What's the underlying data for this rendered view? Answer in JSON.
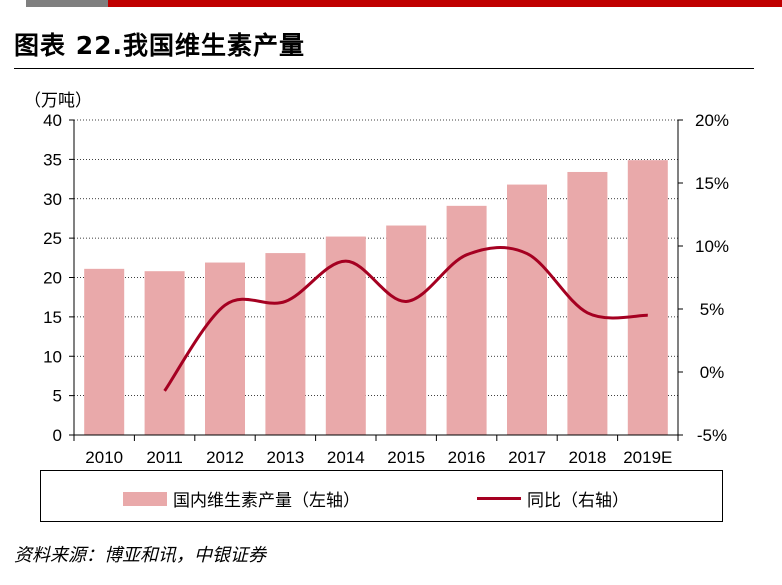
{
  "header": {
    "title": "图表 22.我国维生素产量"
  },
  "unit_label": "（万吨）",
  "source": "资料来源：博亚和讯，中银证券",
  "colors": {
    "bar": "#e9a9aa",
    "line": "#a50021",
    "top_red": "#c00000",
    "top_gray": "#7f7f7f"
  },
  "chart_data": {
    "type": "bar",
    "categories": [
      "2010",
      "2011",
      "2012",
      "2013",
      "2014",
      "2015",
      "2016",
      "2017",
      "2018",
      "2019E"
    ],
    "y_left": {
      "range": [
        0,
        40
      ],
      "ticks": [
        "0",
        "5",
        "10",
        "15",
        "20",
        "25",
        "30",
        "35",
        "40"
      ]
    },
    "y_right": {
      "range": [
        -5,
        20
      ],
      "ticks": [
        "-5%",
        "0%",
        "5%",
        "10%",
        "15%",
        "20%"
      ]
    },
    "series": [
      {
        "name": "国内维生素产量（左轴）",
        "type": "bar",
        "axis": "left",
        "values": [
          21.1,
          20.8,
          21.9,
          23.1,
          25.2,
          26.6,
          29.1,
          31.8,
          33.4,
          34.9
        ]
      },
      {
        "name": "同比（右轴）",
        "type": "line",
        "axis": "right",
        "values": [
          null,
          -1.5,
          5.3,
          5.6,
          8.8,
          5.6,
          9.3,
          9.4,
          4.7,
          4.5
        ]
      }
    ],
    "grid": "horizontal dotted",
    "legend": "bottom"
  }
}
